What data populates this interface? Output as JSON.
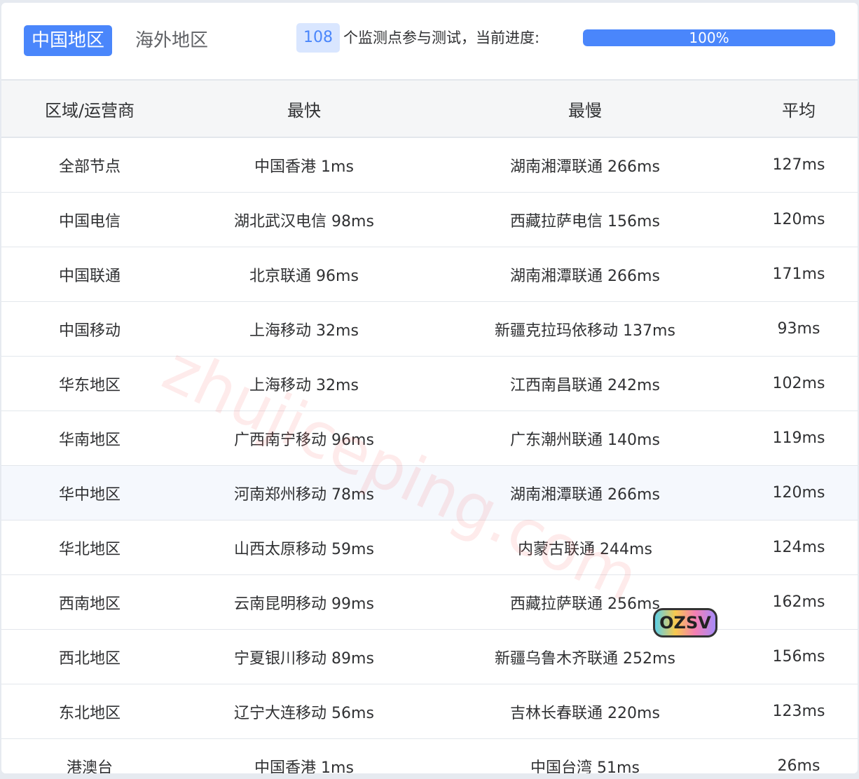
{
  "tabs": [
    {
      "label": "中国地区",
      "active": true
    },
    {
      "label": "海外地区",
      "active": false
    }
  ],
  "progress": {
    "count": "108",
    "text": "个监测点参与测试，当前进度:",
    "percent": 100,
    "label": "100%"
  },
  "accent": "#4a86fb",
  "columns": [
    "区域/运营商",
    "最快",
    "最慢",
    "平均"
  ],
  "rows": [
    [
      "全部节点",
      "中国香港 1ms",
      "湖南湘潭联通 266ms",
      "127ms"
    ],
    [
      "中国电信",
      "湖北武汉电信 98ms",
      "西藏拉萨电信 156ms",
      "120ms"
    ],
    [
      "中国联通",
      "北京联通 96ms",
      "湖南湘潭联通 266ms",
      "171ms"
    ],
    [
      "中国移动",
      "上海移动 32ms",
      "新疆克拉玛依移动 137ms",
      "93ms"
    ],
    [
      "华东地区",
      "上海移动 32ms",
      "江西南昌联通 242ms",
      "102ms"
    ],
    [
      "华南地区",
      "广西南宁移动 96ms",
      "广东潮州联通 140ms",
      "119ms"
    ],
    [
      "华中地区",
      "河南郑州移动 78ms",
      "湖南湘潭联通 266ms",
      "120ms"
    ],
    [
      "华北地区",
      "山西太原移动 59ms",
      "内蒙古联通 244ms",
      "124ms"
    ],
    [
      "西南地区",
      "云南昆明移动 99ms",
      "西藏拉萨联通 256ms",
      "162ms"
    ],
    [
      "西北地区",
      "宁夏银川移动 89ms",
      "新疆乌鲁木齐联通 252ms",
      "156ms"
    ],
    [
      "东北地区",
      "辽宁大连移动 56ms",
      "吉林长春联通 220ms",
      "123ms"
    ],
    [
      "港澳台",
      "中国香港 1ms",
      "中国台湾 51ms",
      "26ms"
    ]
  ],
  "watermark": "zhujiceping.com",
  "logo": "OZSV"
}
